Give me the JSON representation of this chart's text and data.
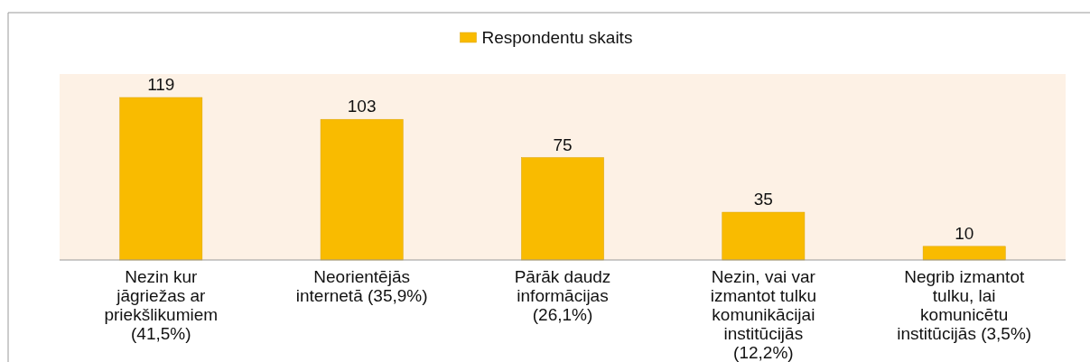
{
  "chart_data": {
    "type": "bar",
    "categories": [
      "Nezin kur jāgriežas ar priekšlikumiem (41,5%)",
      "Neorientējās internetā (35,9%)",
      "Pārāk daudz informācijas (26,1%)",
      "Nezin, vai var izmantot tulku komunikācijai institūcijās (12,2%)",
      "Negrib izmantot tulku, lai komunicētu institūcijās (3,5%)"
    ],
    "series": [
      {
        "name": "Respondentu skaits",
        "color": "#f9bb00",
        "values": [
          119,
          103,
          75,
          35,
          10
        ]
      }
    ],
    "data_labels": true,
    "legend": "top"
  }
}
